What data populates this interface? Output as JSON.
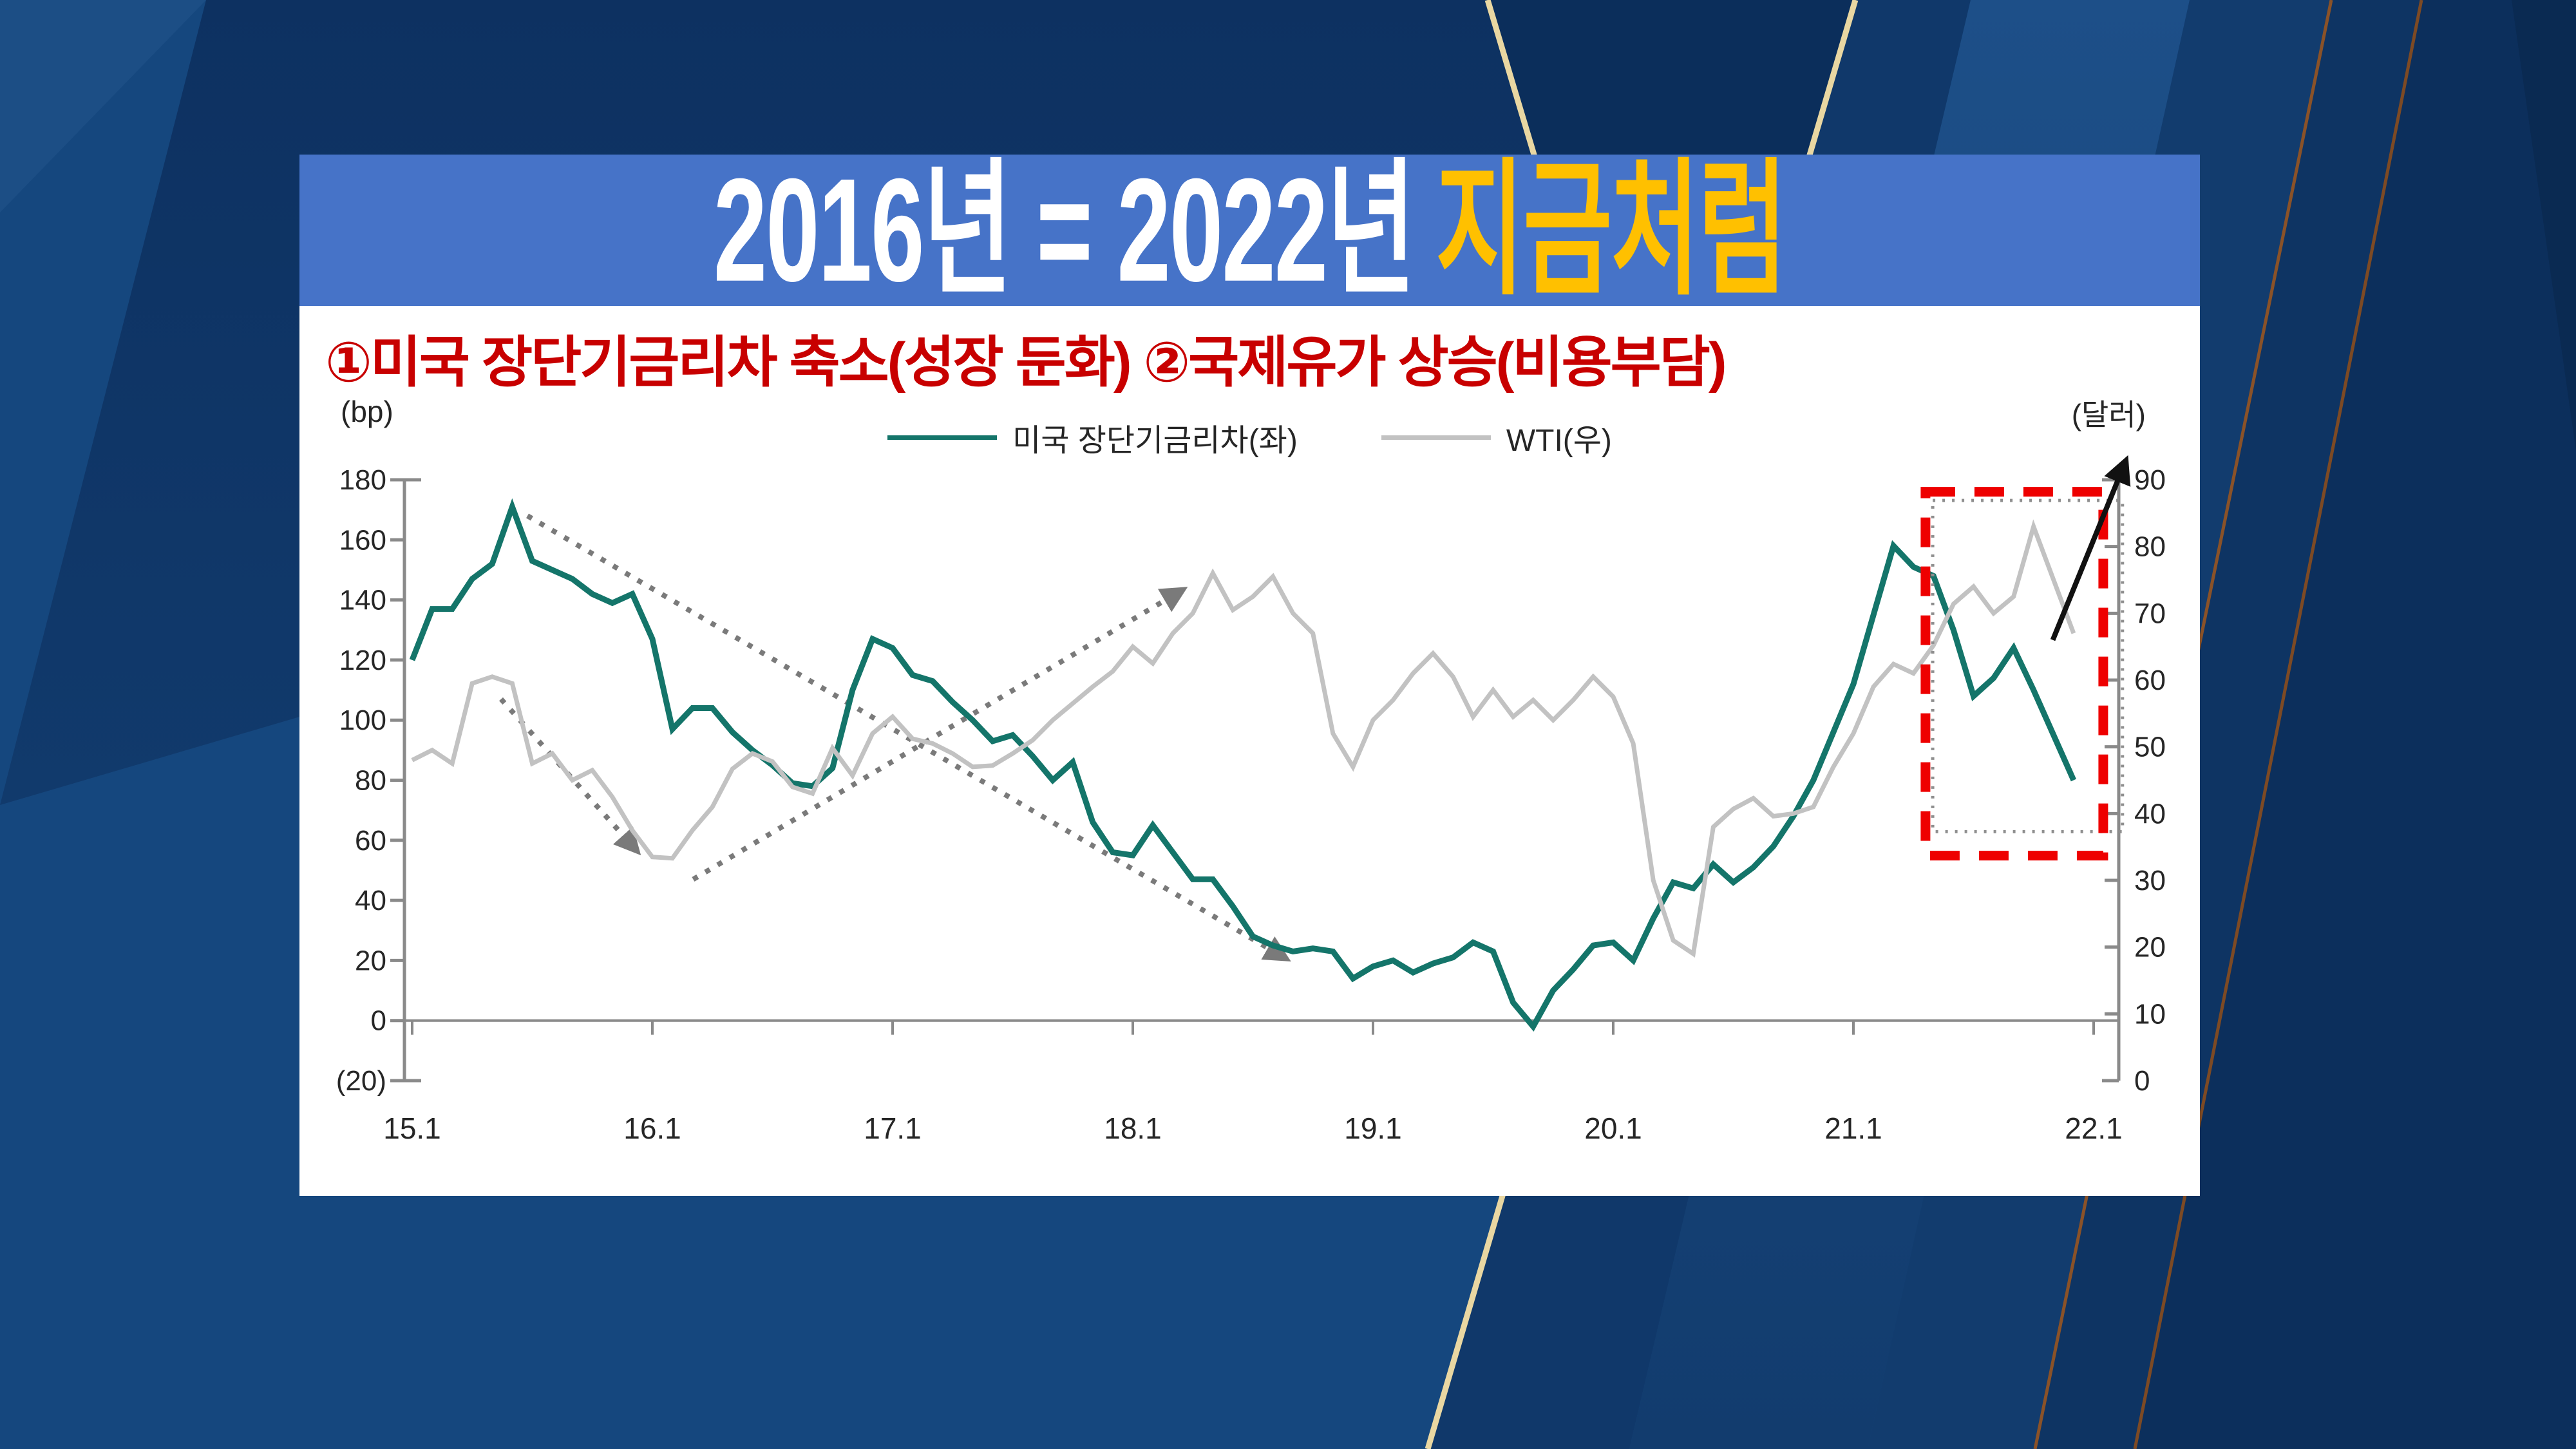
{
  "slide": {
    "title": {
      "main": "2016년 = 2022년",
      "accent": "지금처럼"
    },
    "subtitle": "①미국 장단기금리차 축소(성장 둔화) ②국제유가 상승(비용부담)"
  },
  "theme": {
    "banner_blue": "#4673c8",
    "title_white": "#ffffff",
    "title_yellow": "#ffc000",
    "subtitle_red": "#c80000",
    "card_white": "#ffffff",
    "background_navy": "#15477e",
    "spread_teal": "#14756a",
    "wti_gray": "#c2c2c2",
    "axis_gray": "#8a8a8a",
    "tick_text": "#262626",
    "highlight_red": "#ee0000",
    "dotted_gray": "#7a7a7a",
    "arrow_black": "#111111",
    "gold_line": "#e9d7a2",
    "bronze_line": "#8a5228"
  },
  "chart_data": {
    "type": "line",
    "title": "",
    "left_axis": {
      "label": "(bp)",
      "min": -20,
      "max": 180,
      "tick_step": 20,
      "tick_values": [
        180,
        160,
        140,
        120,
        100,
        80,
        60,
        40,
        20,
        0,
        -20
      ],
      "tick_labels": [
        "180",
        "160",
        "140",
        "120",
        "100",
        "80",
        "60",
        "40",
        "20",
        "0",
        "(20)"
      ]
    },
    "right_axis": {
      "label": "(달러)",
      "min": 0,
      "max": 90,
      "tick_step": 10,
      "tick_values": [
        90,
        80,
        70,
        60,
        50,
        40,
        30,
        20,
        10,
        0
      ],
      "tick_labels": [
        "90",
        "80",
        "70",
        "60",
        "50",
        "40",
        "30",
        "20",
        "10",
        "0"
      ]
    },
    "x_axis": {
      "tick_values": [
        2015,
        2016,
        2017,
        2018,
        2019,
        2020,
        2021,
        2022
      ],
      "tick_labels": [
        "15.1",
        "16.1",
        "17.1",
        "18.1",
        "19.1",
        "20.1",
        "21.1",
        "22.1"
      ]
    },
    "legend": {
      "position": "top-center",
      "entries": [
        "미국 장단기금리차(좌)",
        "WTI(우)"
      ]
    },
    "series": [
      {
        "name": "미국 장단기금리차(좌)",
        "axis": "left",
        "color": "#14756a",
        "width": 9,
        "x_start": 2015.0,
        "x_step": 0.0833333,
        "values": [
          120,
          137,
          137,
          147,
          152,
          171,
          153,
          150,
          147,
          142,
          139,
          142,
          127,
          97,
          104,
          104,
          96,
          90,
          85,
          79,
          78,
          84,
          110,
          127,
          124,
          115,
          113,
          106,
          100,
          93,
          95,
          88,
          80,
          86,
          66,
          56,
          55,
          65,
          56,
          47,
          47,
          38,
          28,
          25,
          23,
          24,
          23,
          14,
          18,
          20,
          16,
          19,
          21,
          26,
          23,
          6,
          -2,
          10,
          17,
          25,
          26,
          20,
          34,
          46,
          44,
          52,
          46,
          51,
          58,
          68,
          80,
          96,
          112,
          135,
          158,
          151,
          148,
          130,
          108,
          114,
          124,
          110,
          95,
          80
        ]
      },
      {
        "name": "WTI(우)",
        "axis": "right",
        "color": "#c2c2c2",
        "width": 7,
        "x_start": 2015.0,
        "x_step": 0.0833333,
        "values": [
          48,
          49.5,
          47.5,
          59.5,
          60.5,
          59.5,
          47.5,
          49,
          45,
          46.5,
          42.5,
          37.5,
          33.5,
          33.3,
          37.5,
          41,
          46.7,
          49,
          47.8,
          44,
          43,
          49.8,
          45.7,
          52,
          54.5,
          51.2,
          50.5,
          49,
          47,
          47.2,
          49,
          51,
          54,
          56.5,
          59,
          61.3,
          65,
          62.5,
          67,
          70,
          76,
          70.5,
          72.5,
          75.5,
          70,
          67,
          52,
          47,
          54,
          57,
          61,
          64,
          60.5,
          54.5,
          58.5,
          54.5,
          57,
          54,
          57,
          60.5,
          57.5,
          50.5,
          30,
          21,
          19,
          38,
          40.7,
          42.3,
          39.6,
          40,
          41,
          47,
          52,
          59,
          62.4,
          61,
          65.2,
          71.4,
          74,
          70,
          72.5,
          83,
          75,
          67
        ]
      }
    ],
    "annotations": {
      "red_dashed_box": {
        "x1": 2021.3,
        "x2": 2022.04,
        "right_y1": 33.7,
        "right_y2": 88.2
      },
      "gray_dotted_box": {
        "x1": 2021.33,
        "x2": 2022.12,
        "right_y1": 37.3,
        "right_y2": 86.9
      },
      "dotted_arrows": [
        {
          "axis": "left",
          "from": [
            2015.48,
            168
          ],
          "to": [
            2018.63,
            21
          ]
        },
        {
          "axis": "left",
          "from": [
            2015.37,
            107
          ],
          "to": [
            2015.93,
            57
          ]
        },
        {
          "axis": "left",
          "from": [
            2016.17,
            47
          ],
          "to": [
            2018.2,
            143
          ]
        }
      ],
      "black_arrow": {
        "axis": "right",
        "from": [
          2021.83,
          66
        ],
        "to": [
          2022.13,
          92.5
        ]
      }
    }
  }
}
